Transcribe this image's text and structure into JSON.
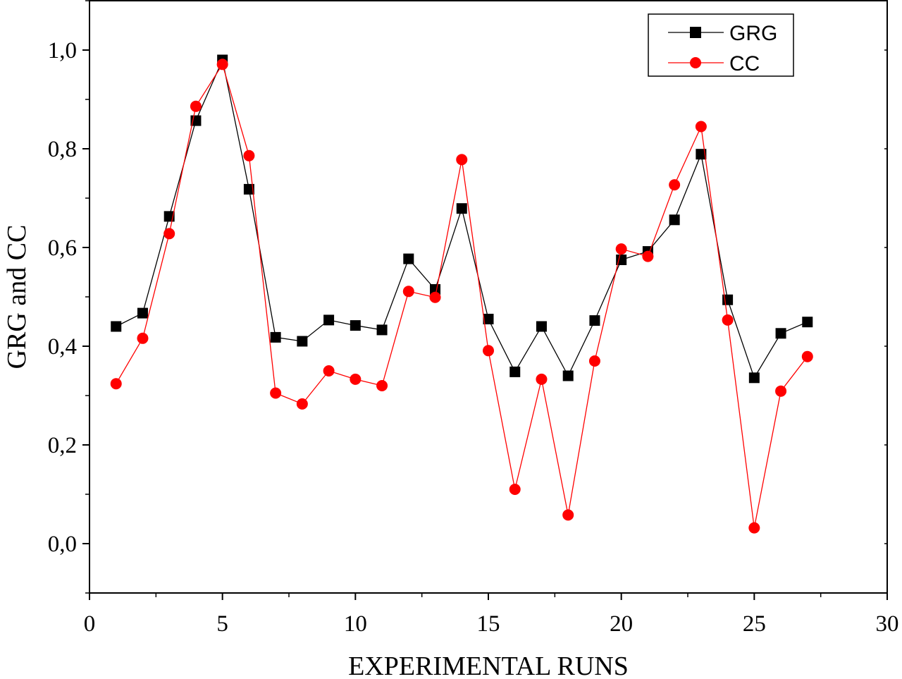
{
  "chart_data": {
    "type": "line",
    "xlabel": "EXPERIMENTAL RUNS",
    "ylabel": "GRG  and  CC",
    "xlim": [
      0,
      30
    ],
    "ylim": [
      -0.1,
      1.1
    ],
    "xticks": [
      0,
      5,
      10,
      15,
      20,
      25,
      30
    ],
    "xtick_labels": [
      "0",
      "5",
      "10",
      "15",
      "20",
      "25",
      "30"
    ],
    "yticks": [
      0.0,
      0.2,
      0.4,
      0.6,
      0.8,
      1.0
    ],
    "ytick_labels": [
      "0,0",
      "0,2",
      "0,4",
      "0,6",
      "0,8",
      "1,0"
    ],
    "grid": false,
    "legend_position": "top-right",
    "x": [
      1,
      2,
      3,
      4,
      5,
      6,
      7,
      8,
      9,
      10,
      11,
      12,
      13,
      14,
      15,
      16,
      17,
      18,
      19,
      20,
      21,
      22,
      23,
      24,
      25,
      26,
      27
    ],
    "series": [
      {
        "name": "GRG",
        "color": "#000000",
        "marker": "square",
        "values": [
          0.44,
          0.467,
          0.663,
          0.857,
          0.98,
          0.718,
          0.418,
          0.41,
          0.453,
          0.442,
          0.433,
          0.577,
          0.515,
          0.679,
          0.455,
          0.348,
          0.44,
          0.34,
          0.452,
          0.575,
          0.592,
          0.656,
          0.789,
          0.494,
          0.336,
          0.426,
          0.449
        ]
      },
      {
        "name": "CC",
        "color": "#ff0000",
        "marker": "circle",
        "values": [
          0.324,
          0.416,
          0.628,
          0.886,
          0.971,
          0.786,
          0.305,
          0.283,
          0.35,
          0.333,
          0.32,
          0.511,
          0.499,
          0.778,
          0.391,
          0.11,
          0.333,
          0.058,
          0.37,
          0.597,
          0.582,
          0.727,
          0.845,
          0.453,
          0.032,
          0.309,
          0.379
        ]
      }
    ]
  }
}
